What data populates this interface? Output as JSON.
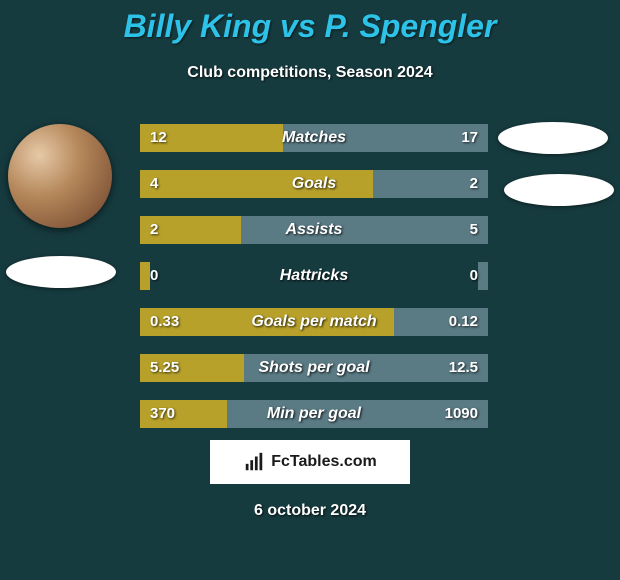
{
  "title": "Billy King vs P. Spengler",
  "subtitle": "Club competitions, Season 2024",
  "date": "6 october 2024",
  "watermark": "FcTables.com",
  "background_color": "#163b3f",
  "title_color": "#2dc3e8",
  "left_bar_color": "#b7a12a",
  "right_bar_color": "#5a7a84",
  "rows": [
    {
      "label": "Matches",
      "left": "12",
      "right": "17",
      "lfrac": 0.41,
      "rfrac": 0.59
    },
    {
      "label": "Goals",
      "left": "4",
      "right": "2",
      "lfrac": 0.67,
      "rfrac": 0.33
    },
    {
      "label": "Assists",
      "left": "2",
      "right": "5",
      "lfrac": 0.29,
      "rfrac": 0.71
    },
    {
      "label": "Hattricks",
      "left": "0",
      "right": "0",
      "lfrac": 0.03,
      "rfrac": 0.03
    },
    {
      "label": "Goals per match",
      "left": "0.33",
      "right": "0.12",
      "lfrac": 0.73,
      "rfrac": 0.27
    },
    {
      "label": "Shots per goal",
      "left": "5.25",
      "right": "12.5",
      "lfrac": 0.3,
      "rfrac": 0.7
    },
    {
      "label": "Min per goal",
      "left": "370",
      "right": "1090",
      "lfrac": 0.25,
      "rfrac": 0.75
    }
  ]
}
